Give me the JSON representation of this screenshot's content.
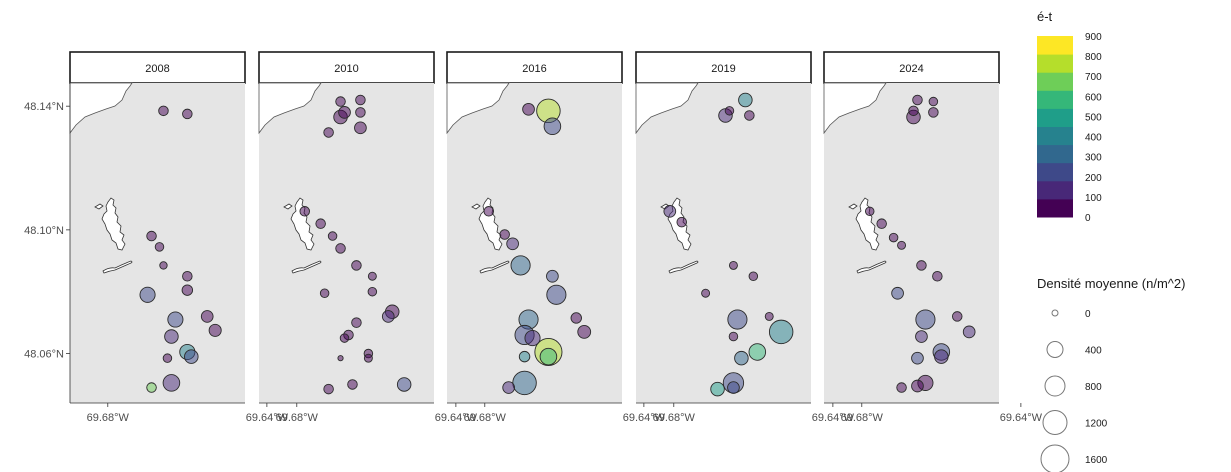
{
  "chart_data": {
    "type": "scatter",
    "panels": [
      "2008",
      "2010",
      "2016",
      "2019",
      "2024"
    ],
    "x_axis": {
      "ticks": [
        -69.68,
        -69.64
      ],
      "tick_labels": [
        "69.68°W",
        "69.64°W"
      ]
    },
    "y_axis": {
      "ticks": [
        48.14,
        48.1,
        48.06
      ],
      "tick_labels": [
        "48.14°N",
        "48.10°N",
        "48.06°N"
      ]
    },
    "color_legend": {
      "title": "é-t",
      "breaks": [
        0,
        100,
        200,
        300,
        400,
        500,
        600,
        700,
        800,
        900
      ],
      "labels": [
        "900",
        "800",
        "700",
        "600",
        "500",
        "400",
        "300",
        "200",
        "100",
        "0"
      ],
      "colors": [
        "#440154",
        "#482878",
        "#3e4989",
        "#31688e",
        "#26828e",
        "#1f9e89",
        "#35b779",
        "#6ece58",
        "#b5de2b",
        "#fde725"
      ]
    },
    "size_legend": {
      "title": "Densité moyenne (n/m^2)",
      "labels": [
        "0",
        "400",
        "800",
        "1200",
        "1600"
      ],
      "values": [
        0,
        400,
        800,
        1200,
        1600
      ]
    },
    "series": [
      {
        "name": "2008",
        "points": [
          {
            "lon": -69.666,
            "lat": 48.1385,
            "size": 100,
            "sd": 50
          },
          {
            "lon": -69.66,
            "lat": 48.1375,
            "size": 100,
            "sd": 50
          },
          {
            "lon": -69.669,
            "lat": 48.098,
            "size": 100,
            "sd": 50
          },
          {
            "lon": -69.667,
            "lat": 48.0945,
            "size": 80,
            "sd": 50
          },
          {
            "lon": -69.666,
            "lat": 48.0885,
            "size": 60,
            "sd": 50
          },
          {
            "lon": -69.66,
            "lat": 48.085,
            "size": 100,
            "sd": 50
          },
          {
            "lon": -69.66,
            "lat": 48.0805,
            "size": 120,
            "sd": 50
          },
          {
            "lon": -69.67,
            "lat": 48.079,
            "size": 250,
            "sd": 250
          },
          {
            "lon": -69.663,
            "lat": 48.071,
            "size": 250,
            "sd": 250
          },
          {
            "lon": -69.655,
            "lat": 48.072,
            "size": 150,
            "sd": 50
          },
          {
            "lon": -69.653,
            "lat": 48.0675,
            "size": 160,
            "sd": 50
          },
          {
            "lon": -69.664,
            "lat": 48.0655,
            "size": 200,
            "sd": 150
          },
          {
            "lon": -69.66,
            "lat": 48.0605,
            "size": 250,
            "sd": 400
          },
          {
            "lon": -69.659,
            "lat": 48.059,
            "size": 200,
            "sd": 250
          },
          {
            "lon": -69.665,
            "lat": 48.0585,
            "size": 80,
            "sd": 50
          },
          {
            "lon": -69.664,
            "lat": 48.0505,
            "size": 300,
            "sd": 150
          },
          {
            "lon": -69.669,
            "lat": 48.049,
            "size": 100,
            "sd": 750
          }
        ]
      },
      {
        "name": "2010",
        "points": [
          {
            "lon": -69.664,
            "lat": 48.142,
            "size": 100,
            "sd": 50
          },
          {
            "lon": -69.669,
            "lat": 48.1415,
            "size": 100,
            "sd": 50
          },
          {
            "lon": -69.668,
            "lat": 48.138,
            "size": 150,
            "sd": 50
          },
          {
            "lon": -69.664,
            "lat": 48.138,
            "size": 100,
            "sd": 50
          },
          {
            "lon": -69.669,
            "lat": 48.1365,
            "size": 200,
            "sd": 50
          },
          {
            "lon": -69.664,
            "lat": 48.133,
            "size": 150,
            "sd": 50
          },
          {
            "lon": -69.672,
            "lat": 48.1315,
            "size": 100,
            "sd": 50
          },
          {
            "lon": -69.678,
            "lat": 48.106,
            "size": 100,
            "sd": 50
          },
          {
            "lon": -69.674,
            "lat": 48.102,
            "size": 100,
            "sd": 50
          },
          {
            "lon": -69.671,
            "lat": 48.098,
            "size": 80,
            "sd": 50
          },
          {
            "lon": -69.669,
            "lat": 48.094,
            "size": 100,
            "sd": 50
          },
          {
            "lon": -69.665,
            "lat": 48.0885,
            "size": 100,
            "sd": 50
          },
          {
            "lon": -69.661,
            "lat": 48.085,
            "size": 70,
            "sd": 50
          },
          {
            "lon": -69.673,
            "lat": 48.0795,
            "size": 80,
            "sd": 50
          },
          {
            "lon": -69.661,
            "lat": 48.08,
            "size": 80,
            "sd": 50
          },
          {
            "lon": -69.656,
            "lat": 48.0735,
            "size": 200,
            "sd": 50
          },
          {
            "lon": -69.657,
            "lat": 48.072,
            "size": 150,
            "sd": 100
          },
          {
            "lon": -69.665,
            "lat": 48.07,
            "size": 100,
            "sd": 50
          },
          {
            "lon": -69.667,
            "lat": 48.066,
            "size": 100,
            "sd": 50
          },
          {
            "lon": -69.668,
            "lat": 48.065,
            "size": 80,
            "sd": 50
          },
          {
            "lon": -69.662,
            "lat": 48.06,
            "size": 80,
            "sd": 50
          },
          {
            "lon": -69.662,
            "lat": 48.0585,
            "size": 70,
            "sd": 50
          },
          {
            "lon": -69.669,
            "lat": 48.0585,
            "size": 30,
            "sd": 50
          },
          {
            "lon": -69.666,
            "lat": 48.05,
            "size": 100,
            "sd": 50
          },
          {
            "lon": -69.672,
            "lat": 48.0485,
            "size": 100,
            "sd": 50
          },
          {
            "lon": -69.653,
            "lat": 48.05,
            "size": 200,
            "sd": 250
          }
        ]
      },
      {
        "name": "2016",
        "points": [
          {
            "lon": -69.664,
            "lat": 48.1385,
            "size": 600,
            "sd": 870
          },
          {
            "lon": -69.669,
            "lat": 48.139,
            "size": 150,
            "sd": 50
          },
          {
            "lon": -69.663,
            "lat": 48.1335,
            "size": 300,
            "sd": 250
          },
          {
            "lon": -69.679,
            "lat": 48.106,
            "size": 100,
            "sd": 50
          },
          {
            "lon": -69.675,
            "lat": 48.0985,
            "size": 100,
            "sd": 50
          },
          {
            "lon": -69.673,
            "lat": 48.0955,
            "size": 150,
            "sd": 100
          },
          {
            "lon": -69.671,
            "lat": 48.0885,
            "size": 400,
            "sd": 300
          },
          {
            "lon": -69.663,
            "lat": 48.085,
            "size": 150,
            "sd": 200
          },
          {
            "lon": -69.662,
            "lat": 48.079,
            "size": 400,
            "sd": 250
          },
          {
            "lon": -69.669,
            "lat": 48.071,
            "size": 400,
            "sd": 300
          },
          {
            "lon": -69.657,
            "lat": 48.0715,
            "size": 120,
            "sd": 50
          },
          {
            "lon": -69.655,
            "lat": 48.067,
            "size": 180,
            "sd": 50
          },
          {
            "lon": -69.67,
            "lat": 48.066,
            "size": 400,
            "sd": 250
          },
          {
            "lon": -69.668,
            "lat": 48.065,
            "size": 250,
            "sd": 150
          },
          {
            "lon": -69.664,
            "lat": 48.0605,
            "size": 800,
            "sd": 850
          },
          {
            "lon": -69.67,
            "lat": 48.059,
            "size": 120,
            "sd": 400
          },
          {
            "lon": -69.664,
            "lat": 48.059,
            "size": 300,
            "sd": 650
          },
          {
            "lon": -69.67,
            "lat": 48.0505,
            "size": 600,
            "sd": 300
          },
          {
            "lon": -69.674,
            "lat": 48.049,
            "size": 150,
            "sd": 100
          }
        ]
      },
      {
        "name": "2019",
        "points": [
          {
            "lon": -69.662,
            "lat": 48.142,
            "size": 200,
            "sd": 400
          },
          {
            "lon": -69.666,
            "lat": 48.1385,
            "size": 80,
            "sd": 50
          },
          {
            "lon": -69.667,
            "lat": 48.137,
            "size": 200,
            "sd": 150
          },
          {
            "lon": -69.661,
            "lat": 48.137,
            "size": 100,
            "sd": 50
          },
          {
            "lon": -69.681,
            "lat": 48.106,
            "size": 150,
            "sd": 150
          },
          {
            "lon": -69.678,
            "lat": 48.1025,
            "size": 100,
            "sd": 50
          },
          {
            "lon": -69.665,
            "lat": 48.0885,
            "size": 70,
            "sd": 50
          },
          {
            "lon": -69.66,
            "lat": 48.085,
            "size": 80,
            "sd": 50
          },
          {
            "lon": -69.672,
            "lat": 48.0795,
            "size": 70,
            "sd": 50
          },
          {
            "lon": -69.664,
            "lat": 48.071,
            "size": 400,
            "sd": 250
          },
          {
            "lon": -69.656,
            "lat": 48.072,
            "size": 70,
            "sd": 50
          },
          {
            "lon": -69.653,
            "lat": 48.067,
            "size": 600,
            "sd": 400
          },
          {
            "lon": -69.665,
            "lat": 48.0655,
            "size": 80,
            "sd": 50
          },
          {
            "lon": -69.659,
            "lat": 48.0605,
            "size": 300,
            "sd": 600
          },
          {
            "lon": -69.663,
            "lat": 48.0585,
            "size": 200,
            "sd": 300
          },
          {
            "lon": -69.665,
            "lat": 48.0505,
            "size": 450,
            "sd": 200
          },
          {
            "lon": -69.665,
            "lat": 48.049,
            "size": 150,
            "sd": 200
          },
          {
            "lon": -69.669,
            "lat": 48.0485,
            "size": 200,
            "sd": 500
          }
        ]
      },
      {
        "name": "2024",
        "points": [
          {
            "lon": -69.666,
            "lat": 48.142,
            "size": 100,
            "sd": 50
          },
          {
            "lon": -69.662,
            "lat": 48.1415,
            "size": 80,
            "sd": 50
          },
          {
            "lon": -69.667,
            "lat": 48.1385,
            "size": 100,
            "sd": 50
          },
          {
            "lon": -69.662,
            "lat": 48.138,
            "size": 100,
            "sd": 50
          },
          {
            "lon": -69.667,
            "lat": 48.1365,
            "size": 200,
            "sd": 50
          },
          {
            "lon": -69.678,
            "lat": 48.106,
            "size": 80,
            "sd": 50
          },
          {
            "lon": -69.675,
            "lat": 48.102,
            "size": 100,
            "sd": 50
          },
          {
            "lon": -69.672,
            "lat": 48.0975,
            "size": 80,
            "sd": 50
          },
          {
            "lon": -69.67,
            "lat": 48.095,
            "size": 70,
            "sd": 50
          },
          {
            "lon": -69.665,
            "lat": 48.0885,
            "size": 100,
            "sd": 50
          },
          {
            "lon": -69.661,
            "lat": 48.085,
            "size": 100,
            "sd": 50
          },
          {
            "lon": -69.671,
            "lat": 48.0795,
            "size": 150,
            "sd": 200
          },
          {
            "lon": -69.664,
            "lat": 48.071,
            "size": 400,
            "sd": 250
          },
          {
            "lon": -69.656,
            "lat": 48.072,
            "size": 100,
            "sd": 50
          },
          {
            "lon": -69.653,
            "lat": 48.067,
            "size": 150,
            "sd": 100
          },
          {
            "lon": -69.665,
            "lat": 48.0655,
            "size": 150,
            "sd": 150
          },
          {
            "lon": -69.66,
            "lat": 48.0605,
            "size": 300,
            "sd": 200
          },
          {
            "lon": -69.66,
            "lat": 48.059,
            "size": 200,
            "sd": 100
          },
          {
            "lon": -69.666,
            "lat": 48.0585,
            "size": 150,
            "sd": 250
          },
          {
            "lon": -69.664,
            "lat": 48.0505,
            "size": 250,
            "sd": 50
          },
          {
            "lon": -69.666,
            "lat": 48.0495,
            "size": 150,
            "sd": 80
          },
          {
            "lon": -69.67,
            "lat": 48.049,
            "size": 100,
            "sd": 80
          }
        ]
      }
    ]
  }
}
